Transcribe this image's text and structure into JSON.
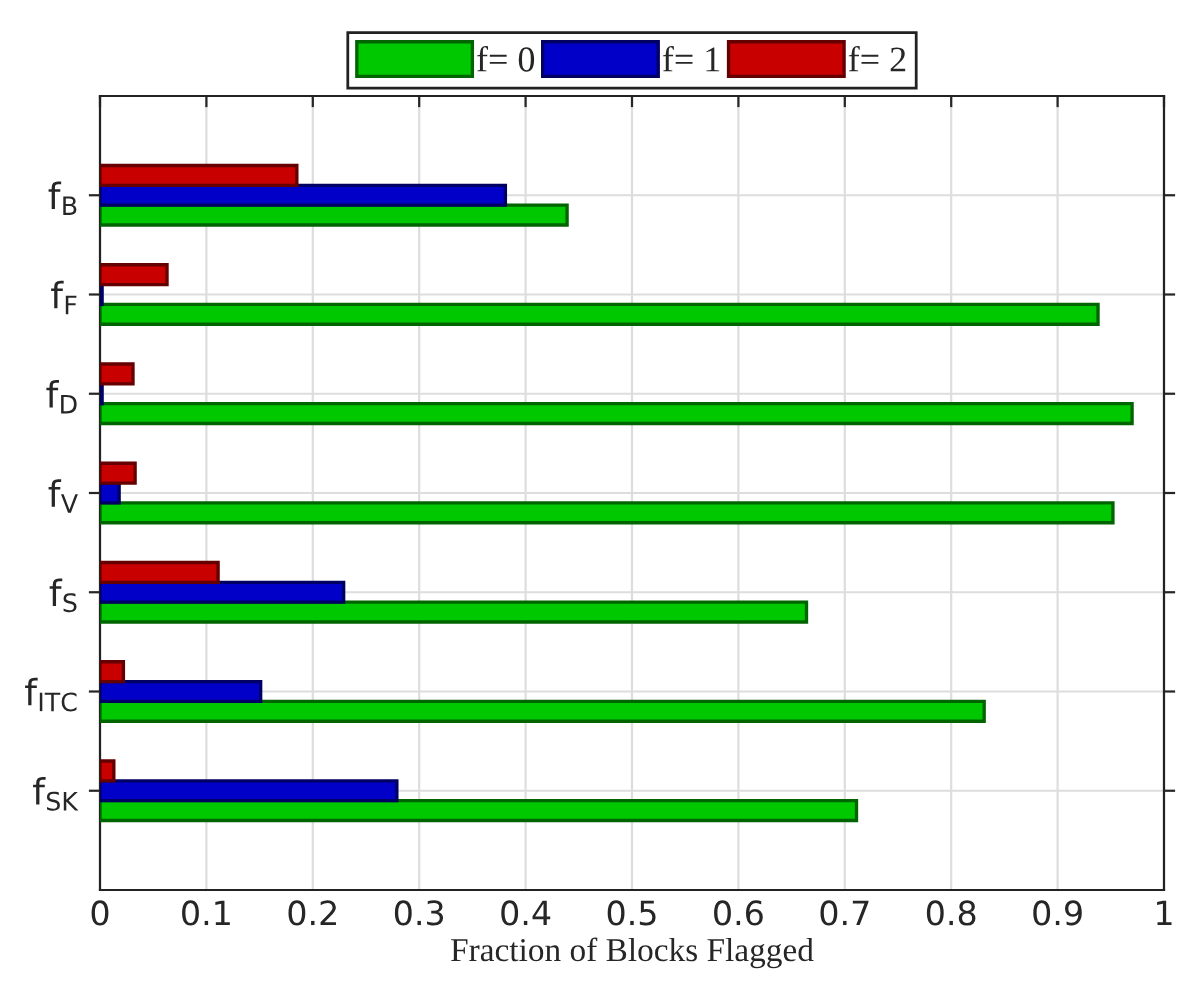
{
  "chart_data": {
    "type": "bar",
    "orientation": "horizontal",
    "categories": [
      "f$_{B}$",
      "f$_{F}$",
      "f$_{D}$",
      "f$_{V}$",
      "f$_{S}$",
      "f$_{ITC}$",
      "f$_{SK}$"
    ],
    "series": [
      {
        "name": "f= 0",
        "color": "#00c800",
        "values": [
          0.439,
          0.938,
          0.97,
          0.952,
          0.664,
          0.831,
          0.711
        ]
      },
      {
        "name": "f= 1",
        "color": "#0000c8",
        "values": [
          0.381,
          0.002,
          0.002,
          0.018,
          0.229,
          0.151,
          0.279
        ]
      },
      {
        "name": "f= 2",
        "color": "#c80000",
        "values": [
          0.185,
          0.063,
          0.031,
          0.033,
          0.111,
          0.022,
          0.013
        ]
      }
    ],
    "xlabel": "Fraction of Blocks Flagged",
    "xlim": [
      0,
      1
    ],
    "xticks": [
      0,
      0.1,
      0.2,
      0.3,
      0.4,
      0.5,
      0.6,
      0.7,
      0.8,
      0.9,
      1
    ],
    "grid": true,
    "legend": "top"
  }
}
